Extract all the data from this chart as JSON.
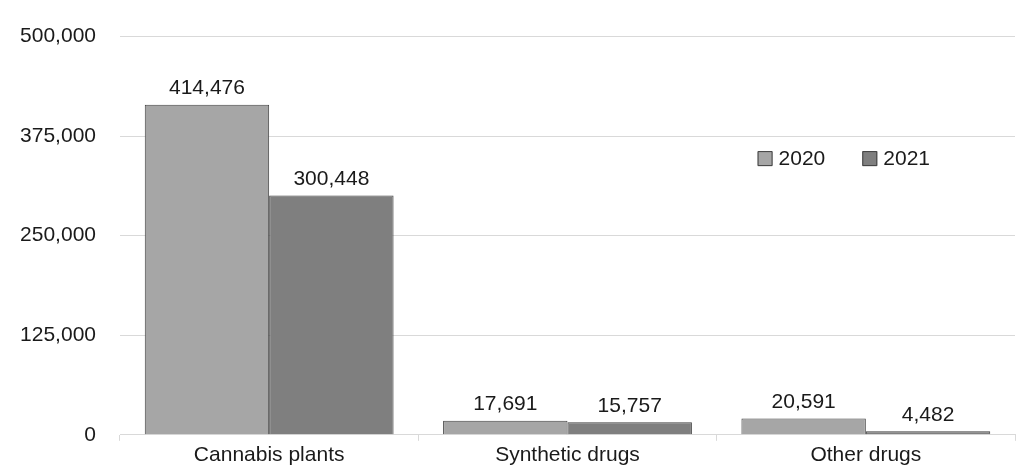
{
  "chart_data": {
    "type": "bar",
    "categories": [
      "Cannabis plants",
      "Synthetic drugs",
      "Other drugs"
    ],
    "series": [
      {
        "name": "2020",
        "color": "#a6a6a6",
        "values": [
          414476,
          17691,
          20591
        ],
        "value_labels": [
          "414,476",
          "17,691",
          "20,591"
        ]
      },
      {
        "name": "2021",
        "color": "#7f7f7f",
        "values": [
          300448,
          15757,
          4482
        ],
        "value_labels": [
          "300,448",
          "15,757",
          "4,482"
        ]
      }
    ],
    "ylim": [
      0,
      500000
    ],
    "yticks": [
      {
        "value": 0,
        "label": "0"
      },
      {
        "value": 125000,
        "label": "125,000"
      },
      {
        "value": 250000,
        "label": "250,000"
      },
      {
        "value": 375000,
        "label": "375,000"
      },
      {
        "value": 500000,
        "label": "500,000"
      }
    ],
    "grid": "y",
    "legend": "top right"
  }
}
